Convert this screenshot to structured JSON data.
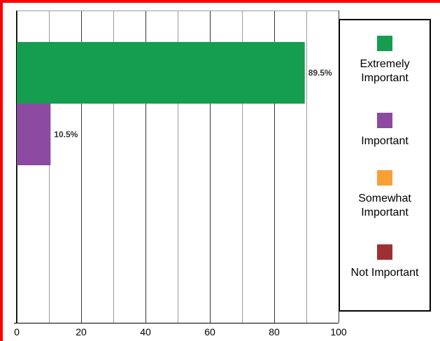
{
  "chart_data": {
    "type": "bar",
    "orientation": "horizontal",
    "categories": [
      "Extremely Important",
      "Important",
      "Somewhat Important",
      "Not Important"
    ],
    "values": [
      89.5,
      10.5,
      0,
      0
    ],
    "data_labels": [
      "89.5%",
      "10.5%",
      "",
      ""
    ],
    "colors": [
      "#159d50",
      "#8c4aa0",
      "#f7a035",
      "#9e3033"
    ],
    "xlim": [
      0,
      100
    ],
    "x_ticks": [
      0,
      20,
      40,
      60,
      80,
      100
    ],
    "grid": true,
    "legend_position": "right",
    "legend": [
      "Extremely Important",
      "Important",
      "Somewhat Important",
      "Not Important"
    ]
  }
}
